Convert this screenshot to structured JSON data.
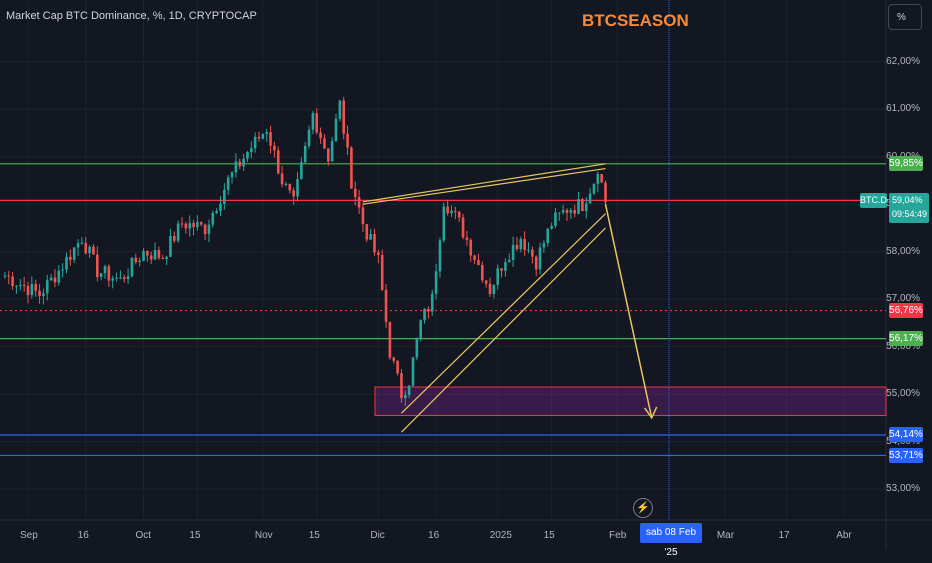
{
  "header": {
    "title": "Market Cap BTC Dominance, %, 1D, CRYPTOCAP",
    "brand": "BTCSEASON",
    "unit": "%"
  },
  "chart_data": {
    "type": "candlestick",
    "symbol": "BTC.D",
    "ylim": [
      52.35,
      63.3
    ],
    "y_ticks": [
      "62,00%",
      "61,00%",
      "60,00%",
      "59,00%",
      "58,00%",
      "57,00%",
      "56,00%",
      "55,00%",
      "54,00%",
      "53,00%"
    ],
    "y_tick_values": [
      62,
      61,
      60,
      59,
      58,
      57,
      56,
      55,
      54,
      53
    ],
    "x_ticks": [
      "Sep",
      "16",
      "Oct",
      "15",
      "Nov",
      "15",
      "Dic",
      "16",
      "2025",
      "15",
      "Feb",
      "Mar",
      "17",
      "Abr"
    ],
    "x_tick_days": [
      0,
      15,
      30,
      44,
      61,
      75,
      91,
      106,
      122,
      136,
      153,
      181,
      197,
      212
    ],
    "horizontal_levels": [
      {
        "label": "59,85%",
        "value": 59.85,
        "color": "#4caf50"
      },
      {
        "label": "59,08%",
        "value": 59.08,
        "color": "#f23645"
      },
      {
        "label": "56,76%",
        "value": 56.76,
        "color": "#f23645",
        "dotted": true
      },
      {
        "label": "56,17%",
        "value": 56.17,
        "color": "#4caf50"
      },
      {
        "label": "54,14%",
        "value": 54.14,
        "color": "#2962ff"
      },
      {
        "label": "53,71%",
        "value": 53.71,
        "color": "#2962ff"
      }
    ],
    "current": {
      "symbol": "BTC.D",
      "price": "59,04%",
      "countdown": "09:54:49"
    },
    "crosshair_date": "sab 08 Feb '25",
    "demand_zone": {
      "top": 55.15,
      "bottom": 54.55,
      "color": "#9c27b0"
    },
    "anchors": [
      {
        "day": -6,
        "close": 57.5
      },
      {
        "day": 3,
        "close": 57.1
      },
      {
        "day": 8,
        "close": 57.6
      },
      {
        "day": 14,
        "close": 58.3
      },
      {
        "day": 18,
        "close": 57.6
      },
      {
        "day": 24,
        "close": 57.4
      },
      {
        "day": 30,
        "close": 58.0
      },
      {
        "day": 35,
        "close": 57.9
      },
      {
        "day": 40,
        "close": 58.6
      },
      {
        "day": 46,
        "close": 58.5
      },
      {
        "day": 52,
        "close": 59.5
      },
      {
        "day": 57,
        "close": 60.1
      },
      {
        "day": 62,
        "close": 60.6
      },
      {
        "day": 66,
        "close": 59.5
      },
      {
        "day": 69,
        "close": 59.0
      },
      {
        "day": 74,
        "close": 60.9
      },
      {
        "day": 78,
        "close": 60.0
      },
      {
        "day": 81,
        "close": 61.1
      },
      {
        "day": 84,
        "close": 59.5
      },
      {
        "day": 87,
        "close": 58.6
      },
      {
        "day": 91,
        "close": 57.8
      },
      {
        "day": 94,
        "close": 55.9
      },
      {
        "day": 97,
        "close": 55.0
      },
      {
        "day": 99,
        "close": 55.3
      },
      {
        "day": 102,
        "close": 56.5
      },
      {
        "day": 105,
        "close": 57.0
      },
      {
        "day": 108,
        "close": 59.1
      },
      {
        "day": 112,
        "close": 58.6
      },
      {
        "day": 116,
        "close": 57.9
      },
      {
        "day": 120,
        "close": 57.2
      },
      {
        "day": 124,
        "close": 57.9
      },
      {
        "day": 128,
        "close": 58.3
      },
      {
        "day": 132,
        "close": 57.8
      },
      {
        "day": 136,
        "close": 58.6
      },
      {
        "day": 140,
        "close": 58.9
      },
      {
        "day": 144,
        "close": 59.0
      },
      {
        "day": 147,
        "close": 59.5
      },
      {
        "day": 148,
        "close": 59.8
      },
      {
        "day": 150,
        "close": 59.04
      }
    ],
    "trendlines": [
      {
        "from": [
          87,
          59.05
        ],
        "to": [
          150,
          59.85
        ],
        "color": "#e6c75f"
      },
      {
        "from": [
          87,
          59.0
        ],
        "to": [
          150,
          59.75
        ],
        "color": "#e6c75f"
      },
      {
        "from": [
          97,
          54.6
        ],
        "to": [
          150,
          58.8
        ],
        "color": "#e6c75f"
      },
      {
        "from": [
          97,
          54.2
        ],
        "to": [
          150,
          58.5
        ],
        "color": "#e6c75f"
      }
    ],
    "projection": {
      "from": [
        150,
        59.0
      ],
      "to": [
        162,
        54.5
      ],
      "color": "#e6c75f"
    }
  }
}
